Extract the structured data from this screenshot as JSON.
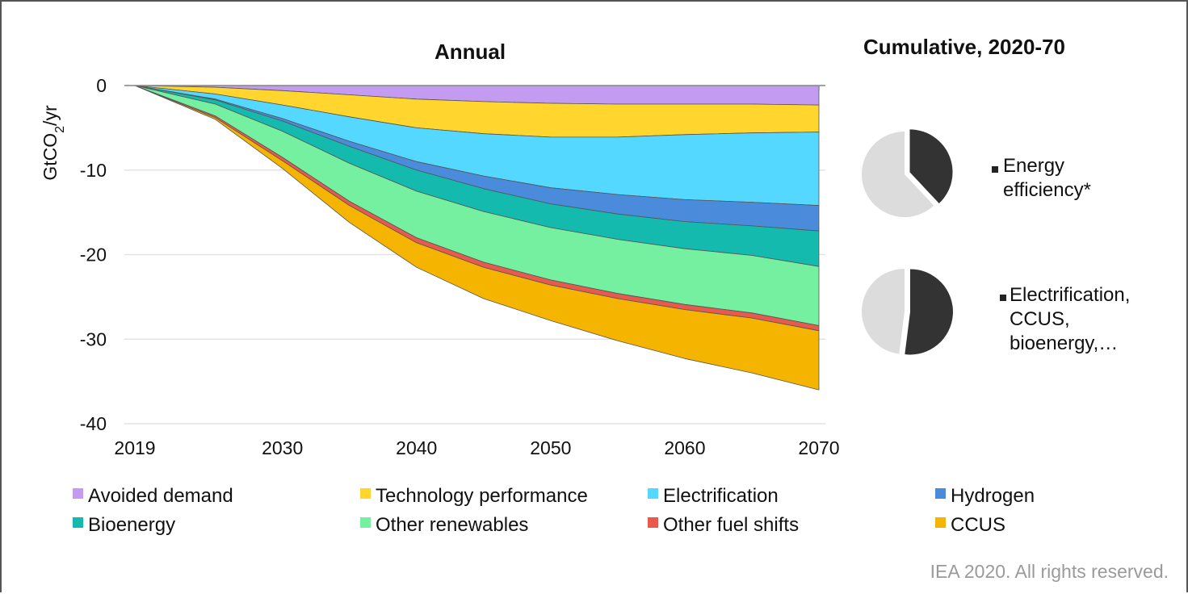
{
  "chart_data": {
    "type": "area",
    "title": "Annual",
    "xlabel": "",
    "ylabel": "GtCO2/yr",
    "ylim": [
      -40,
      0
    ],
    "xlim": [
      2019,
      2070
    ],
    "x_ticks": [
      "2019",
      "2030",
      "2040",
      "2050",
      "2060",
      "2070"
    ],
    "y_ticks": [
      "0",
      "-10",
      "-20",
      "-30",
      "-40"
    ],
    "grid": "horizontal",
    "legend_position": "bottom",
    "x": [
      2019,
      2025,
      2030,
      2035,
      2040,
      2045,
      2050,
      2055,
      2060,
      2065,
      2070
    ],
    "series": [
      {
        "name": "Avoided demand",
        "color": "#C39BF0",
        "values": [
          0,
          -0.2,
          -0.6,
          -1.1,
          -1.6,
          -1.9,
          -2.1,
          -2.2,
          -2.2,
          -2.2,
          -2.3
        ]
      },
      {
        "name": "Technology performance",
        "color": "#FFD52E",
        "values": [
          0,
          -0.8,
          -1.7,
          -2.6,
          -3.4,
          -3.8,
          -4.0,
          -3.9,
          -3.6,
          -3.4,
          -3.2
        ]
      },
      {
        "name": "Electrification",
        "color": "#55D8FF",
        "values": [
          0,
          -0.6,
          -1.6,
          -2.9,
          -4.0,
          -5.0,
          -6.0,
          -6.8,
          -7.7,
          -8.2,
          -8.7
        ]
      },
      {
        "name": "Hydrogen",
        "color": "#4A8BDC",
        "values": [
          0,
          -0.1,
          -0.3,
          -0.6,
          -1.0,
          -1.5,
          -1.9,
          -2.3,
          -2.6,
          -2.8,
          -3.0
        ]
      },
      {
        "name": "Bioenergy",
        "color": "#14BAAE",
        "values": [
          0,
          -0.5,
          -1.2,
          -2.0,
          -2.5,
          -2.7,
          -2.8,
          -3.0,
          -3.2,
          -3.5,
          -4.2
        ]
      },
      {
        "name": "Other renewables",
        "color": "#75F0A0",
        "values": [
          0,
          -1.4,
          -3.1,
          -4.5,
          -5.5,
          -6.0,
          -6.2,
          -6.4,
          -6.6,
          -6.8,
          -7.0
        ]
      },
      {
        "name": "Other fuel shifts",
        "color": "#E85A4E",
        "values": [
          0,
          -0.2,
          -0.4,
          -0.5,
          -0.6,
          -0.6,
          -0.6,
          -0.6,
          -0.6,
          -0.6,
          -0.6
        ]
      },
      {
        "name": "CCUS",
        "color": "#F4B400",
        "values": [
          0,
          -0.2,
          -0.9,
          -2.0,
          -2.9,
          -3.7,
          -4.2,
          -5.0,
          -5.8,
          -6.5,
          -7.0
        ]
      }
    ],
    "pies": {
      "title": "Cumulative, 2020-70",
      "charts": [
        {
          "label_lines": [
            "Energy",
            "efficiency*"
          ],
          "share": 0.38,
          "color": "#333333",
          "rest_color": "#DCDCDC"
        },
        {
          "label_lines": [
            "Electrification,",
            "CCUS,",
            "bioenergy,…"
          ],
          "share": 0.52,
          "color": "#333333",
          "rest_color": "#DCDCDC"
        }
      ]
    }
  },
  "credit": "IEA 2020. All rights reserved."
}
